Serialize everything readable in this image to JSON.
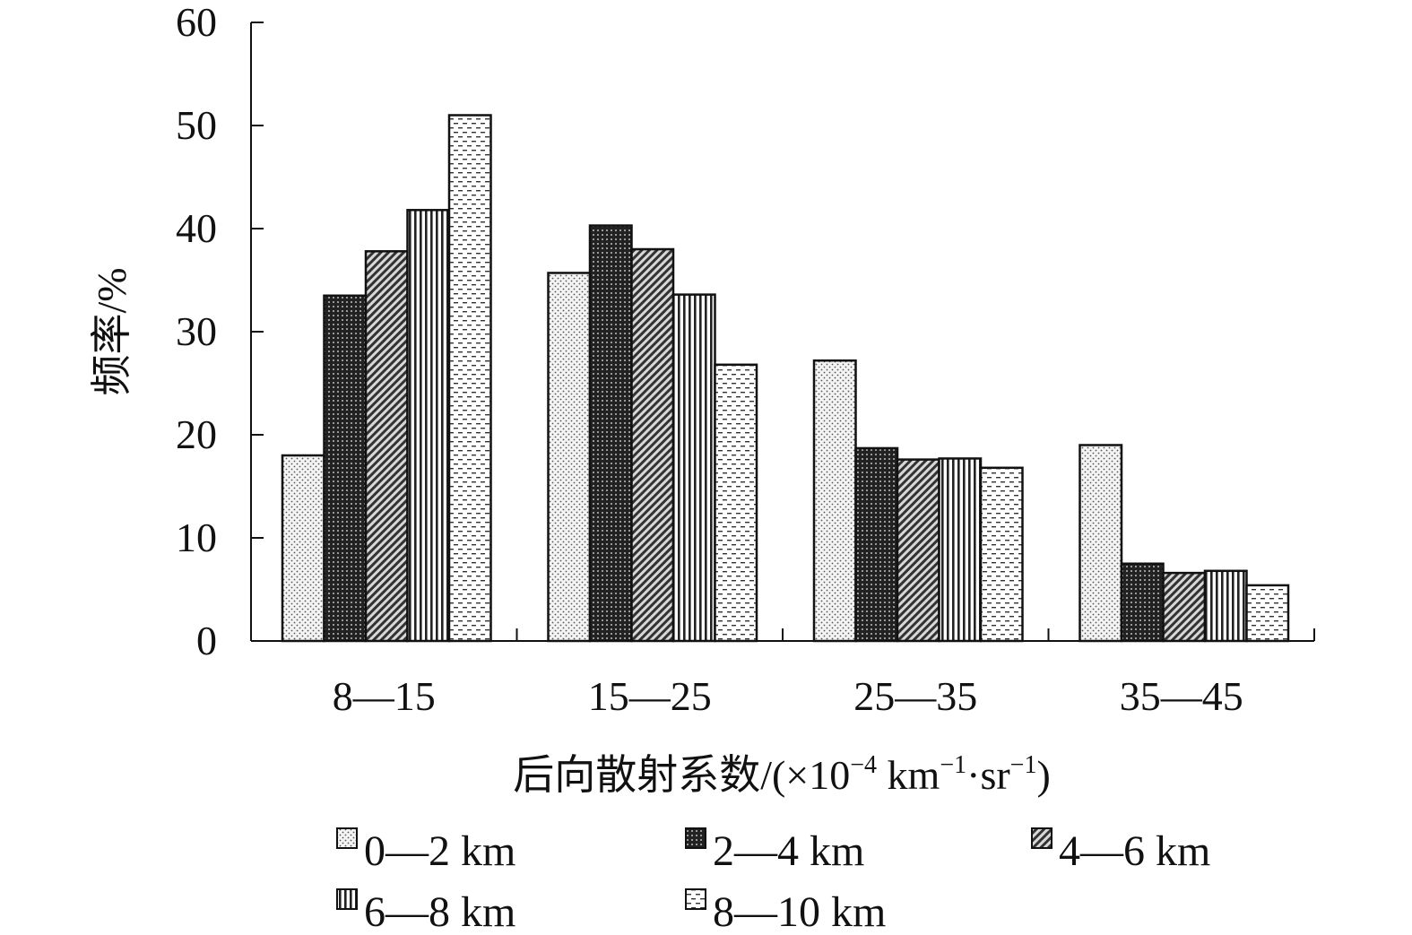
{
  "chart_data": {
    "type": "bar",
    "title": "",
    "xlabel": {
      "main": "后向散射系数/(×10",
      "exp1": "−4",
      "mid1": " km",
      "exp2": "−1",
      "mid2": "·sr",
      "exp3": "−1",
      "end": ")"
    },
    "ylabel": "频率/%",
    "ylim": [
      0,
      60
    ],
    "yticks": [
      "0",
      "10",
      "20",
      "30",
      "40",
      "50",
      "60"
    ],
    "categories": [
      "8—15",
      "15—25",
      "25—35",
      "35—45"
    ],
    "series": [
      {
        "name": "0—2 km",
        "pattern": "dots",
        "values": [
          18.0,
          35.7,
          27.2,
          19.0
        ]
      },
      {
        "name": "2—4 km",
        "pattern": "dense-grid",
        "values": [
          33.5,
          40.3,
          18.7,
          7.5
        ]
      },
      {
        "name": "4—6 km",
        "pattern": "diagonal",
        "values": [
          37.8,
          38.0,
          17.6,
          6.6
        ]
      },
      {
        "name": "6—8 km",
        "pattern": "vertical",
        "values": [
          41.8,
          33.6,
          17.7,
          6.8
        ]
      },
      {
        "name": "8—10 km",
        "pattern": "dashes",
        "values": [
          51.0,
          26.8,
          16.8,
          5.4
        ]
      }
    ],
    "legend_position": "bottom",
    "grid": false
  }
}
